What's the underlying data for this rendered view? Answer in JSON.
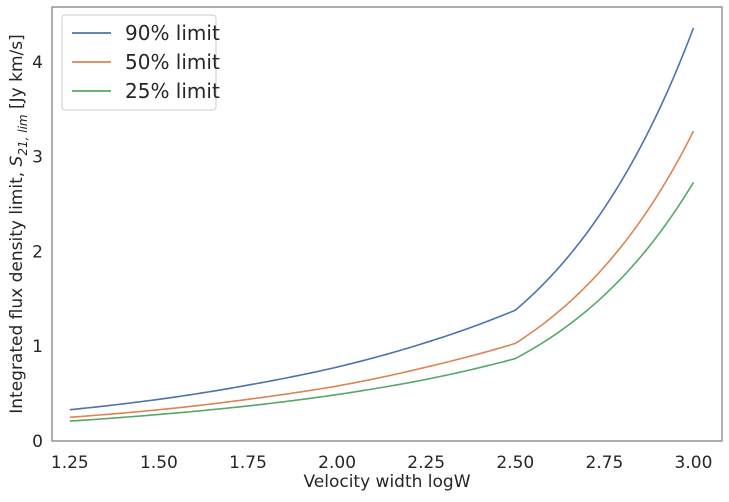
{
  "chart_data": {
    "type": "line",
    "title": "",
    "xlabel": "Velocity width logW",
    "ylabel_prefix": "Integrated flux density limit, ",
    "ylabel_symbol": "S",
    "ylabel_subscript": "21, lim",
    "ylabel_suffix": " [Jy km/s]",
    "xlim": [
      1.2,
      3.08
    ],
    "ylim": [
      0,
      4.58
    ],
    "xticks": [
      "1.25",
      "1.50",
      "1.75",
      "2.00",
      "2.25",
      "2.50",
      "2.75",
      "3.00"
    ],
    "yticks": [
      "0",
      "1",
      "2",
      "3",
      "4"
    ],
    "grid": false,
    "legend_position": "top-left",
    "x": [
      1.25,
      1.5,
      1.75,
      2.0,
      2.25,
      2.5,
      2.75,
      3.0
    ],
    "series": [
      {
        "name": "90% limit",
        "color": "#4c72b0",
        "values": [
          0.33,
          0.44,
          0.59,
          0.78,
          1.04,
          1.38,
          2.46,
          4.36
        ]
      },
      {
        "name": "50% limit",
        "color": "#dd8452",
        "values": [
          0.25,
          0.33,
          0.44,
          0.58,
          0.78,
          1.03,
          1.84,
          3.27
        ]
      },
      {
        "name": "25% limit",
        "color": "#55a868",
        "values": [
          0.21,
          0.28,
          0.37,
          0.49,
          0.65,
          0.87,
          1.54,
          2.73
        ]
      }
    ]
  }
}
